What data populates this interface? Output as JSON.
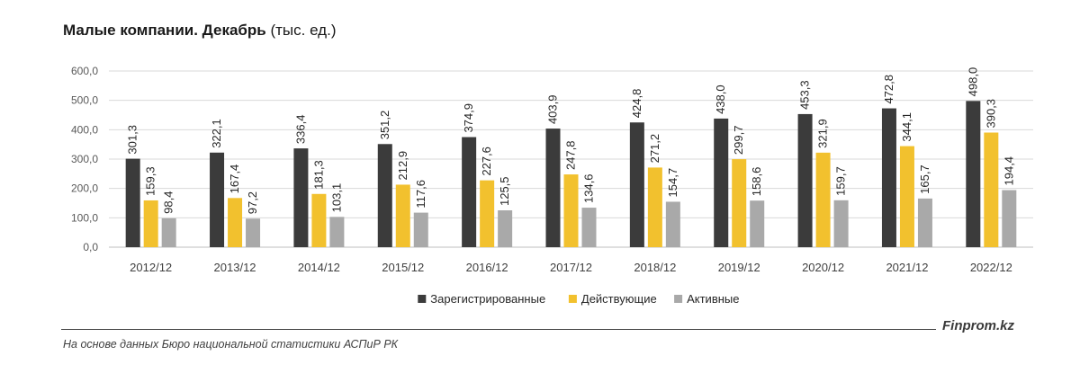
{
  "title": {
    "bold": "Малые компании. Декабрь",
    "unit": "(тыс. ед.)"
  },
  "colors": {
    "registered": "#3b3b3b",
    "active_operating": "#f2c12e",
    "active": "#a9a9a9",
    "grid": "#d9d9d9",
    "axis": "#bfbfbf"
  },
  "chart_data": {
    "type": "bar",
    "categories": [
      "2012/12",
      "2013/12",
      "2014/12",
      "2015/12",
      "2016/12",
      "2017/12",
      "2018/12",
      "2019/12",
      "2020/12",
      "2021/12",
      "2022/12"
    ],
    "series": [
      {
        "name": "Зарегистрированные",
        "color": "#3b3b3b",
        "values": [
          301.3,
          322.1,
          336.4,
          351.2,
          374.9,
          403.9,
          424.8,
          438.0,
          453.3,
          472.8,
          498.0
        ],
        "labels": [
          "301,3",
          "322,1",
          "336,4",
          "351,2",
          "374,9",
          "403,9",
          "424,8",
          "438,0",
          "453,3",
          "472,8",
          "498,0"
        ]
      },
      {
        "name": "Действующие",
        "color": "#f2c12e",
        "values": [
          159.3,
          167.4,
          181.3,
          212.9,
          227.6,
          247.8,
          271.2,
          299.7,
          321.9,
          344.1,
          390.3
        ],
        "labels": [
          "159,3",
          "167,4",
          "181,3",
          "212,9",
          "227,6",
          "247,8",
          "271,2",
          "299,7",
          "321,9",
          "344,1",
          "390,3"
        ]
      },
      {
        "name": "Активные",
        "color": "#a9a9a9",
        "values": [
          98.4,
          97.2,
          103.1,
          117.6,
          125.5,
          134.6,
          154.7,
          158.6,
          159.7,
          165.7,
          194.4
        ],
        "labels": [
          "98,4",
          "97,2",
          "103,1",
          "117,6",
          "125,5",
          "134,6",
          "154,7",
          "158,6",
          "159,7",
          "165,7",
          "194,4"
        ]
      }
    ],
    "yticks": [
      "0,0",
      "100,0",
      "200,0",
      "300,0",
      "400,0",
      "500,0",
      "600,0"
    ],
    "ylim": [
      0,
      600
    ],
    "grid": true,
    "legend": "bottom-center",
    "title": "Малые компании. Декабрь (тыс. ед.)",
    "xlabel": "",
    "ylabel": ""
  },
  "footer": {
    "brand": "Finprom.kz",
    "source": "На основе данных Бюро национальной статистики АСПиР РК"
  }
}
